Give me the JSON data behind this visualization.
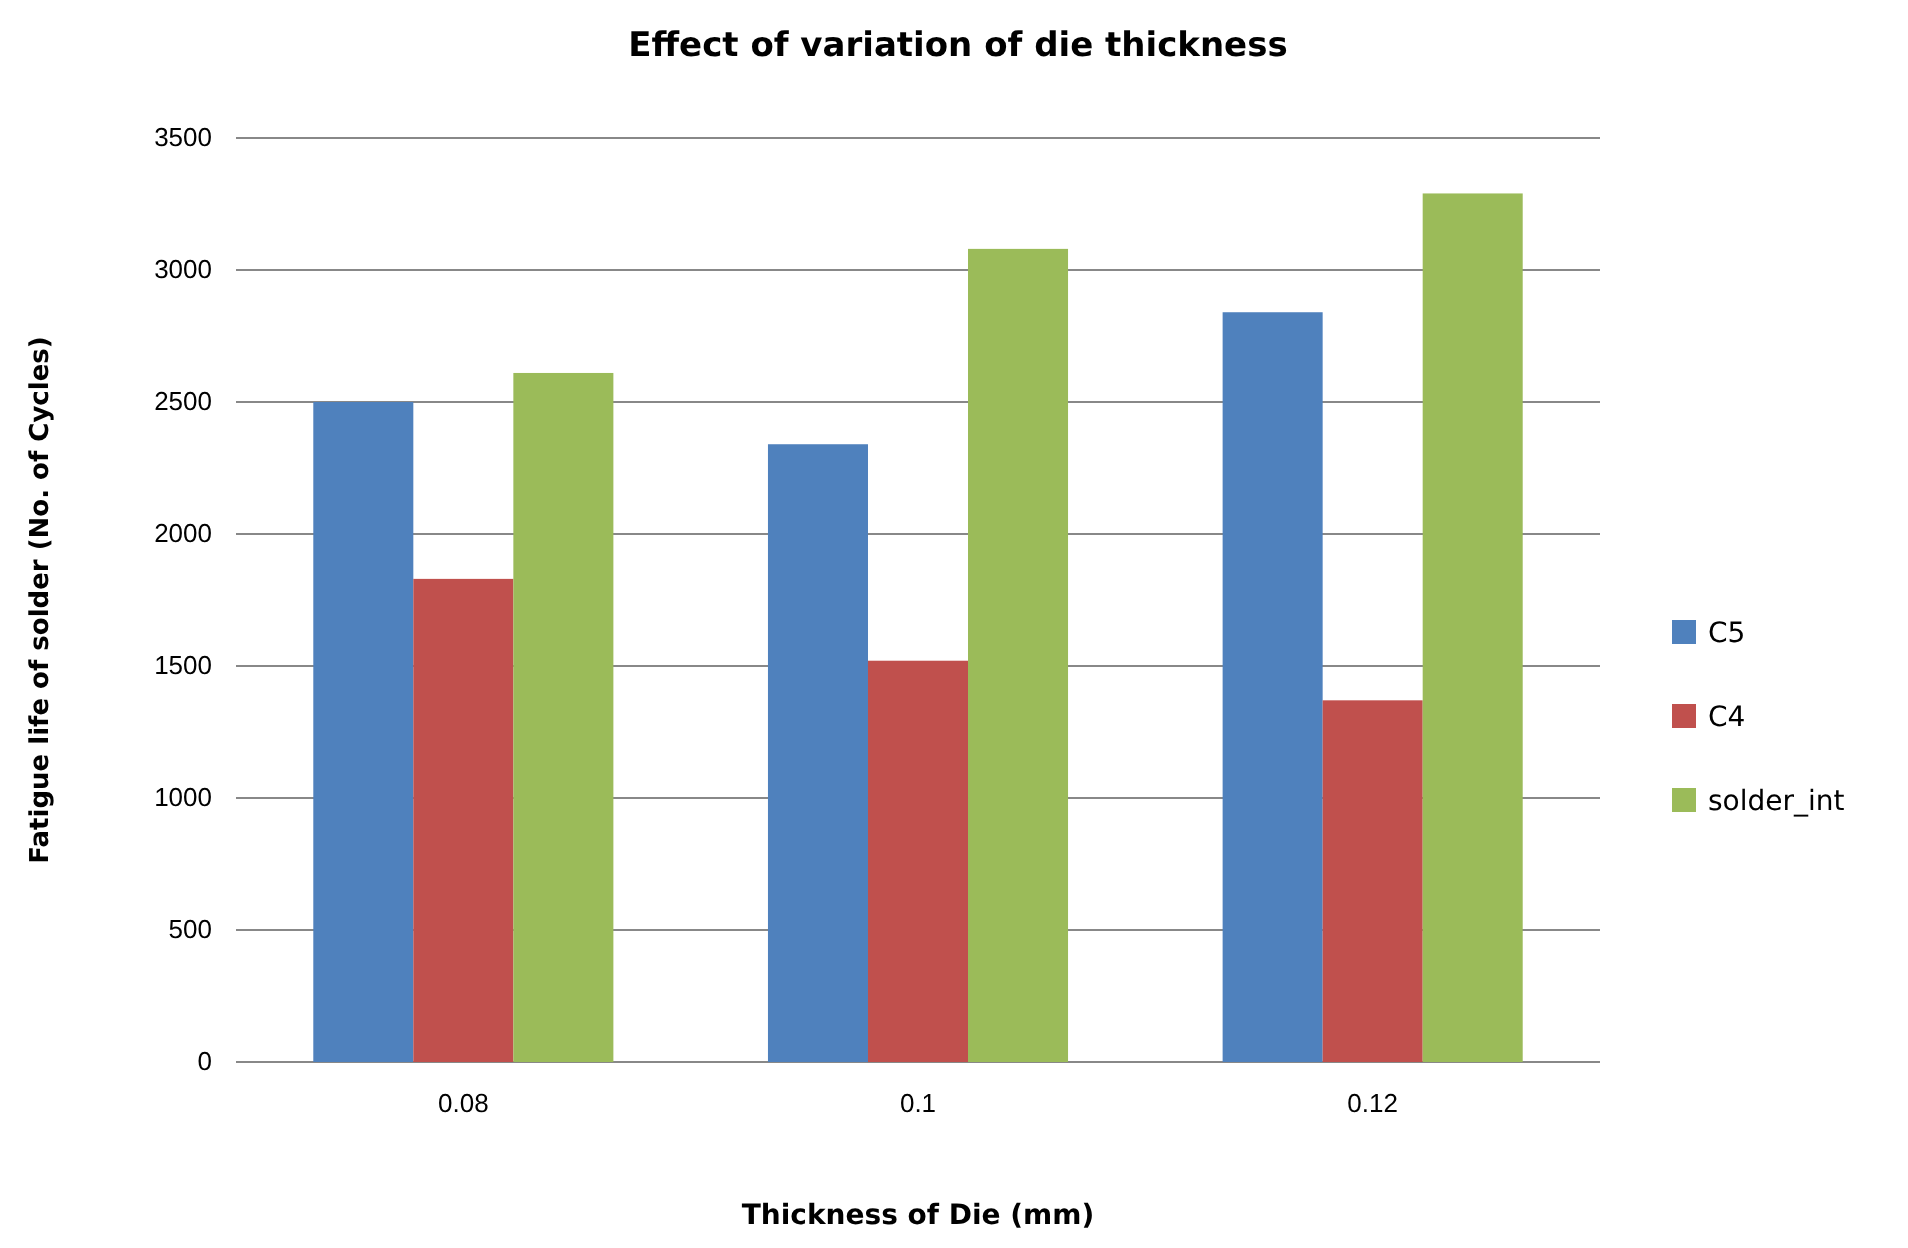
{
  "chart_data": {
    "type": "bar",
    "title": "Effect of variation of die thickness",
    "xlabel": "Thickness of Die (mm)",
    "ylabel": "Fatigue life of solder  (No. of Cycles)",
    "categories": [
      "0.08",
      "0.1",
      "0.12"
    ],
    "series": [
      {
        "name": "C5",
        "color": "#4f81bd",
        "values": [
          2500,
          2340,
          2840
        ]
      },
      {
        "name": "C4",
        "color": "#c0504d",
        "values": [
          1830,
          1520,
          1370
        ]
      },
      {
        "name": "solder_int",
        "color": "#9bbb59",
        "values": [
          2610,
          3080,
          3290
        ]
      }
    ],
    "ylim": [
      0,
      3500
    ],
    "yticks": [
      0,
      500,
      1000,
      1500,
      2000,
      2500,
      3000,
      3500
    ],
    "grid": "y",
    "legend": "right"
  }
}
